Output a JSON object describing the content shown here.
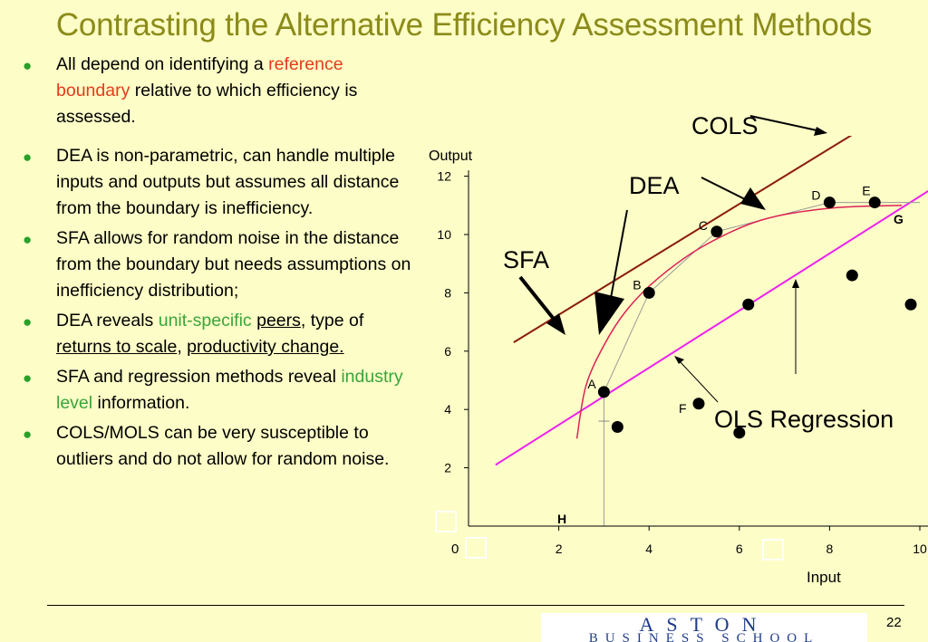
{
  "title": "Contrasting the Alternative Efficiency Assessment Methods",
  "bullets": {
    "b1": {
      "pre": "All depend on identifying a ",
      "highlight": "reference boundary",
      "post": " relative to which efficiency is assessed."
    },
    "b2": "DEA is non-parametric, can handle multiple inputs and outputs but assumes all distance from the boundary is inefficiency.",
    "b3": "SFA allows for random noise in the distance from the boundary but needs assumptions on inefficiency distribution;",
    "b4": {
      "pre": "DEA reveals ",
      "green": "unit-specific",
      "space": " ",
      "peers": "peers",
      "comma1": ",",
      "mid": " type of ",
      "rts": "returns to scale",
      "comma2": ", ",
      "prod": "productivity change."
    },
    "b5": {
      "pre": "SFA and regression methods  reveal ",
      "green": "industry level",
      "post": " information."
    },
    "b6": "COLS/MOLS  can be very susceptible to outliers and do not allow for random noise."
  },
  "chart_data": {
    "type": "scatter",
    "xlabel": "Input",
    "ylabel": "Output",
    "xlim": [
      0,
      10
    ],
    "ylim": [
      0,
      12
    ],
    "x_ticks": [
      2,
      4,
      6,
      8,
      10
    ],
    "y_ticks": [
      2,
      4,
      6,
      8,
      10,
      12
    ],
    "origin_label": "0",
    "points": [
      {
        "label": "A",
        "x": 3.0,
        "y": 4.6
      },
      {
        "label": "",
        "x": 3.3,
        "y": 3.4
      },
      {
        "label": "B",
        "x": 4.0,
        "y": 8.0
      },
      {
        "label": "C",
        "x": 5.5,
        "y": 10.1
      },
      {
        "label": "D",
        "x": 8.0,
        "y": 11.1
      },
      {
        "label": "E",
        "x": 9.0,
        "y": 11.1
      },
      {
        "label": "F",
        "x": 5.1,
        "y": 4.2
      },
      {
        "label": "",
        "x": 6.2,
        "y": 7.6
      },
      {
        "label": "",
        "x": 6.0,
        "y": 3.2
      },
      {
        "label": "",
        "x": 8.5,
        "y": 8.6
      },
      {
        "label": "",
        "x": 9.8,
        "y": 7.6
      }
    ],
    "dea_frontier": [
      [
        3.0,
        0
      ],
      [
        3.0,
        4.6
      ],
      [
        4.0,
        8.0
      ],
      [
        5.5,
        10.1
      ],
      [
        8.0,
        11.1
      ],
      [
        9.0,
        11.1
      ],
      [
        10.0,
        11.1
      ]
    ],
    "sfa_curve": [
      [
        2.4,
        3.0
      ],
      [
        2.6,
        4.8
      ],
      [
        3.0,
        6.2
      ],
      [
        3.5,
        7.4
      ],
      [
        4.2,
        8.5
      ],
      [
        5.2,
        9.6
      ],
      [
        6.5,
        10.5
      ],
      [
        8.0,
        10.9
      ],
      [
        9.6,
        11.0
      ]
    ],
    "cols_line": [
      [
        1.0,
        6.3
      ],
      [
        10.9,
        15.7
      ]
    ],
    "ols_line": [
      [
        0.6,
        2.1
      ],
      [
        10.5,
        11.8
      ]
    ],
    "annotations": {
      "cols": "COLS",
      "dea": "DEA",
      "sfa": "SFA",
      "ols": "OLS Regression",
      "g": "G",
      "h": "H"
    },
    "colors": {
      "cols_line": "#8b1c0e",
      "ols_line": "#ee22ee",
      "sfa_curve": "#dd2255",
      "frontier": "#9a9a9a",
      "tick_labels": "#000000"
    }
  },
  "footer": {
    "page_number": "22",
    "logo_main": "ASTON",
    "logo_sub": "BUSINESS SCHOOL"
  }
}
